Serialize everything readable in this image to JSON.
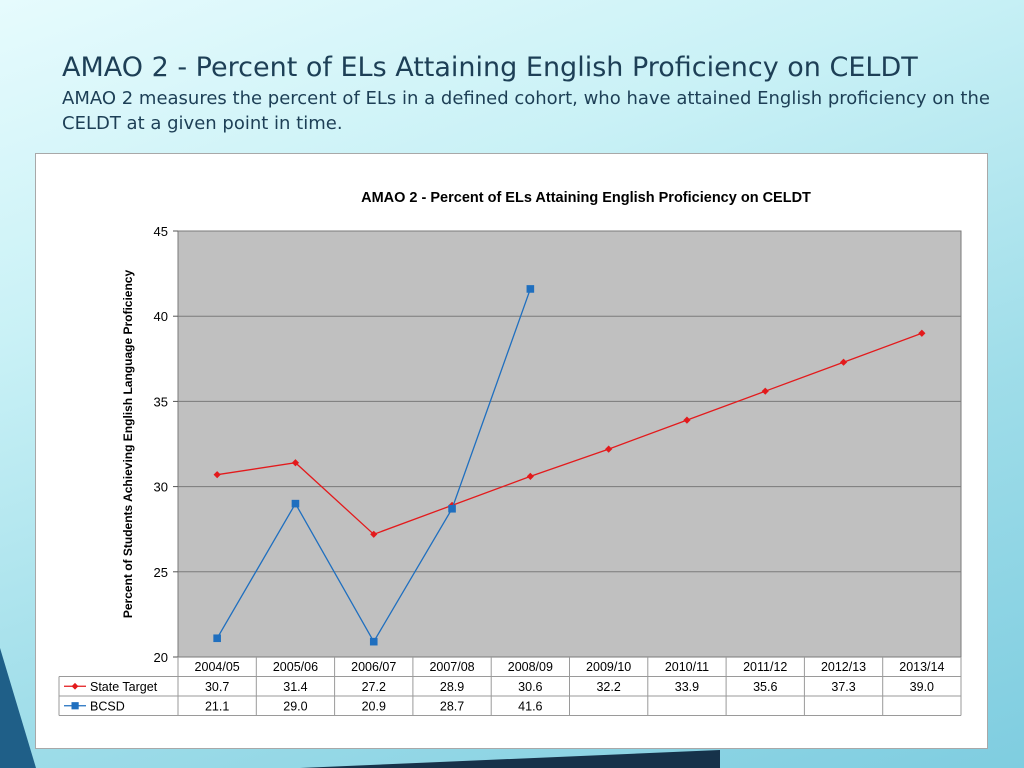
{
  "slide": {
    "title": "AMAO 2 - Percent of ELs Attaining English Proficiency on CELDT",
    "subtitle": "AMAO 2 measures the percent of ELs in a defined cohort, who have attained English proficiency on the CELDT at a given point in time."
  },
  "chart_data": {
    "type": "line",
    "title": "AMAO 2 - Percent of ELs Attaining English Proficiency on CELDT",
    "xlabel": "",
    "ylabel": "Percent of Students Achieving English Language Proficiency",
    "ylim": [
      20,
      45
    ],
    "yticks": [
      20,
      25,
      30,
      35,
      40,
      45
    ],
    "grid": true,
    "legend": "data-table",
    "categories": [
      "2004/05",
      "2005/06",
      "2006/07",
      "2007/08",
      "2008/09",
      "2009/10",
      "2010/11",
      "2011/12",
      "2012/13",
      "2013/14"
    ],
    "series": [
      {
        "name": "State Target",
        "color": "#e31a1c",
        "marker": "diamond",
        "values": [
          30.7,
          31.4,
          27.2,
          28.9,
          30.6,
          32.2,
          33.9,
          35.6,
          37.3,
          39.0
        ],
        "labels": [
          "30.7",
          "31.4",
          "27.2",
          "28.9",
          "30.6",
          "32.2",
          "33.9",
          "35.6",
          "37.3",
          "39.0"
        ]
      },
      {
        "name": "BCSD",
        "color": "#1f6fbf",
        "marker": "square",
        "values": [
          21.1,
          29.0,
          20.9,
          28.7,
          41.6,
          null,
          null,
          null,
          null,
          null
        ],
        "labels": [
          "21.1",
          "29.0",
          "20.9",
          "28.7",
          "41.6",
          "",
          "",
          "",
          "",
          ""
        ]
      }
    ],
    "colors": {
      "plot_background": "#c0c0c0",
      "gridline": "#7a7a7a"
    }
  }
}
